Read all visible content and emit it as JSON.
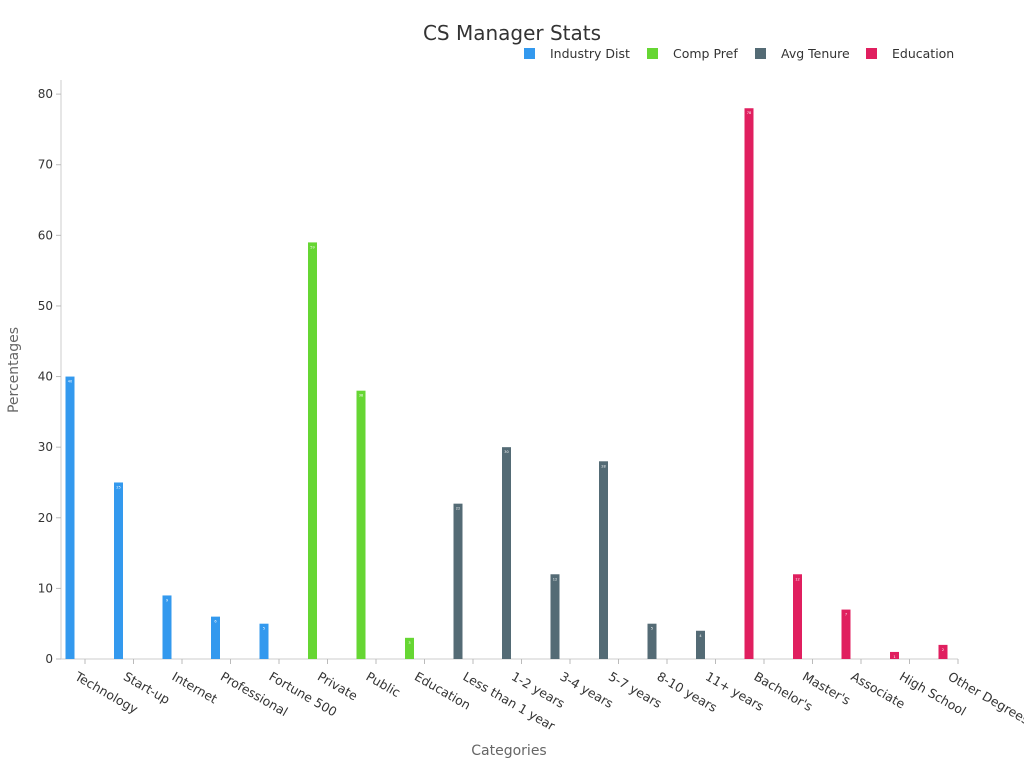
{
  "chart_data": {
    "type": "bar",
    "title": "CS Manager Stats",
    "xlabel": "Categories",
    "ylabel": "Percentages",
    "ylim": [
      0,
      82
    ],
    "yticks": [
      0,
      10,
      20,
      30,
      40,
      50,
      60,
      70,
      80
    ],
    "grid": false,
    "legend_position": "top-right",
    "categories": [
      "Technology",
      "Start-up",
      "Internet",
      "Professional",
      "Fortune 500",
      "Private",
      "Public",
      "Education",
      "Less than 1 year",
      "1-2 years",
      "3-4 years",
      "5-7 years",
      "8-10 years",
      "11+ years",
      "Bachelor's",
      "Master's",
      "Associate",
      "High School",
      "Other Degrees"
    ],
    "series": [
      {
        "name": "Industry Dist",
        "color": "#3399ee",
        "values": [
          40,
          25,
          9,
          6,
          5,
          null,
          null,
          null,
          null,
          null,
          null,
          null,
          null,
          null,
          null,
          null,
          null,
          null,
          null
        ]
      },
      {
        "name": "Comp Pref",
        "color": "#66d633",
        "values": [
          null,
          null,
          null,
          null,
          null,
          59,
          38,
          3,
          null,
          null,
          null,
          null,
          null,
          null,
          null,
          null,
          null,
          null,
          null
        ]
      },
      {
        "name": "Avg Tenure",
        "color": "#546b75",
        "values": [
          null,
          null,
          null,
          null,
          null,
          null,
          null,
          null,
          22,
          30,
          12,
          28,
          5,
          4,
          null,
          null,
          null,
          null,
          null
        ]
      },
      {
        "name": "Education",
        "color": "#e01f5f",
        "values": [
          null,
          null,
          null,
          null,
          null,
          null,
          null,
          null,
          null,
          null,
          null,
          null,
          null,
          null,
          78,
          12,
          7,
          1,
          2
        ]
      }
    ]
  }
}
